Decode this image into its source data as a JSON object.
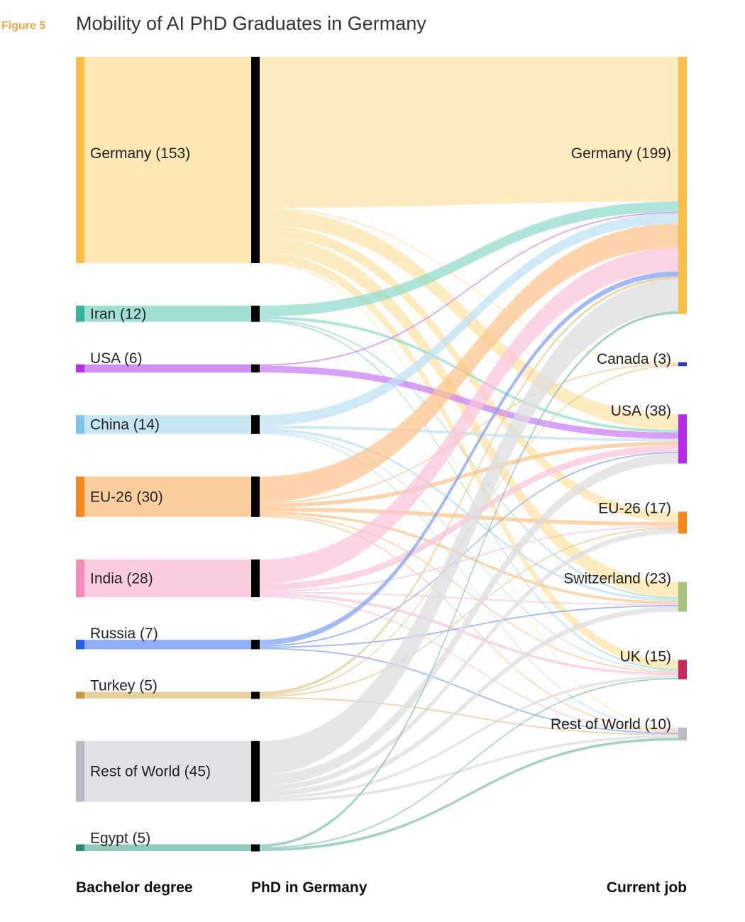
{
  "figure": {
    "label": "Figure 5",
    "label_color": "#f7a54a",
    "title": "Mobility of AI PhD Graduates in Germany"
  },
  "columns": {
    "left": "Bachelor degree",
    "middle": "PhD in Germany",
    "right": "Current job"
  },
  "chart_data": {
    "type": "sankey",
    "sources": [
      {
        "name": "Germany",
        "value": 153,
        "label": "Germany (153)",
        "color": "#fbbe48",
        "flow_color": "#fde3a8"
      },
      {
        "name": "Iran",
        "value": 12,
        "label": "Iran (12)",
        "color": "#36b49f",
        "flow_color": "#8fd9cb"
      },
      {
        "name": "USA",
        "value": 6,
        "label": "USA (6)",
        "color": "#b42ee8",
        "flow_color": "#c97cf3"
      },
      {
        "name": "China",
        "value": 14,
        "label": "China (14)",
        "color": "#7fc6e8",
        "flow_color": "#bde2f2"
      },
      {
        "name": "EU-26",
        "value": 30,
        "label": "EU-26 (30)",
        "color": "#f7881f",
        "flow_color": "#fcc48c"
      },
      {
        "name": "India",
        "value": 28,
        "label": "India (28)",
        "color": "#f48cba",
        "flow_color": "#f9c3db"
      },
      {
        "name": "Russia",
        "value": 7,
        "label": "Russia (7)",
        "color": "#1f5df5",
        "flow_color": "#7f9ff7"
      },
      {
        "name": "Turkey",
        "value": 5,
        "label": "Turkey (5)",
        "color": "#c89b3c",
        "flow_color": "#e2c88e"
      },
      {
        "name": "Rest of World",
        "value": 45,
        "label": "Rest of World (45)",
        "color": "#b9bcc4",
        "flow_color": "#dcdde1"
      },
      {
        "name": "Egypt",
        "value": 5,
        "label": "Egypt (5)",
        "color": "#2c8a73",
        "flow_color": "#7ebfae"
      }
    ],
    "targets": [
      {
        "name": "Germany",
        "value": 199,
        "label": "Germany (199)",
        "color": "#fbbe48"
      },
      {
        "name": "Canada",
        "value": 3,
        "label": "Canada (3)",
        "color": "#1f3fbf"
      },
      {
        "name": "USA",
        "value": 38,
        "label": "USA (38)",
        "color": "#b42ee8"
      },
      {
        "name": "EU-26",
        "value": 17,
        "label": "EU-26 (17)",
        "color": "#f7881f"
      },
      {
        "name": "Switzerland",
        "value": 23,
        "label": "Switzerland (23)",
        "color": "#a8c47c"
      },
      {
        "name": "UK",
        "value": 15,
        "label": "UK (15)",
        "color": "#c8285a"
      },
      {
        "name": "Rest of World",
        "value": 10,
        "label": "Rest of World (10)",
        "color": "#b9bcc4"
      }
    ],
    "middle_node_color": "#000000",
    "links": [
      {
        "source": "Germany",
        "target": "Germany",
        "value": 112
      },
      {
        "source": "Germany",
        "target": "Canada",
        "value": 1
      },
      {
        "source": "Germany",
        "target": "USA",
        "value": 12
      },
      {
        "source": "Germany",
        "target": "EU-26",
        "value": 8
      },
      {
        "source": "Germany",
        "target": "Switzerland",
        "value": 12
      },
      {
        "source": "Germany",
        "target": "UK",
        "value": 7
      },
      {
        "source": "Germany",
        "target": "Rest of World",
        "value": 1
      },
      {
        "source": "Iran",
        "target": "Germany",
        "value": 8
      },
      {
        "source": "Iran",
        "target": "USA",
        "value": 2
      },
      {
        "source": "Iran",
        "target": "Switzerland",
        "value": 1
      },
      {
        "source": "Iran",
        "target": "UK",
        "value": 1
      },
      {
        "source": "USA",
        "target": "Germany",
        "value": 1
      },
      {
        "source": "USA",
        "target": "USA",
        "value": 5
      },
      {
        "source": "China",
        "target": "Germany",
        "value": 8
      },
      {
        "source": "China",
        "target": "USA",
        "value": 2
      },
      {
        "source": "China",
        "target": "Switzerland",
        "value": 2
      },
      {
        "source": "China",
        "target": "UK",
        "value": 1
      },
      {
        "source": "China",
        "target": "Rest of World",
        "value": 1
      },
      {
        "source": "EU-26",
        "target": "Germany",
        "value": 19
      },
      {
        "source": "EU-26",
        "target": "Canada",
        "value": 1
      },
      {
        "source": "EU-26",
        "target": "USA",
        "value": 3
      },
      {
        "source": "EU-26",
        "target": "EU-26",
        "value": 3
      },
      {
        "source": "EU-26",
        "target": "Switzerland",
        "value": 2
      },
      {
        "source": "EU-26",
        "target": "UK",
        "value": 1
      },
      {
        "source": "EU-26",
        "target": "Rest of World",
        "value": 1
      },
      {
        "source": "India",
        "target": "Germany",
        "value": 18
      },
      {
        "source": "India",
        "target": "USA",
        "value": 5
      },
      {
        "source": "India",
        "target": "EU-26",
        "value": 1
      },
      {
        "source": "India",
        "target": "Switzerland",
        "value": 1
      },
      {
        "source": "India",
        "target": "UK",
        "value": 2
      },
      {
        "source": "India",
        "target": "Rest of World",
        "value": 1
      },
      {
        "source": "Russia",
        "target": "Germany",
        "value": 4
      },
      {
        "source": "Russia",
        "target": "USA",
        "value": 1
      },
      {
        "source": "Russia",
        "target": "Switzerland",
        "value": 1
      },
      {
        "source": "Russia",
        "target": "Rest of World",
        "value": 1
      },
      {
        "source": "Turkey",
        "target": "Germany",
        "value": 2
      },
      {
        "source": "Turkey",
        "target": "Canada",
        "value": 1
      },
      {
        "source": "Turkey",
        "target": "EU-26",
        "value": 1
      },
      {
        "source": "Turkey",
        "target": "Rest of World",
        "value": 1
      },
      {
        "source": "Rest of World",
        "target": "Germany",
        "value": 25
      },
      {
        "source": "Rest of World",
        "target": "USA",
        "value": 8
      },
      {
        "source": "Rest of World",
        "target": "EU-26",
        "value": 4
      },
      {
        "source": "Rest of World",
        "target": "Switzerland",
        "value": 4
      },
      {
        "source": "Rest of World",
        "target": "UK",
        "value": 2
      },
      {
        "source": "Rest of World",
        "target": "Rest of World",
        "value": 2
      },
      {
        "source": "Egypt",
        "target": "Germany",
        "value": 2
      },
      {
        "source": "Egypt",
        "target": "UK",
        "value": 1
      },
      {
        "source": "Egypt",
        "target": "Rest of World",
        "value": 2
      }
    ]
  }
}
